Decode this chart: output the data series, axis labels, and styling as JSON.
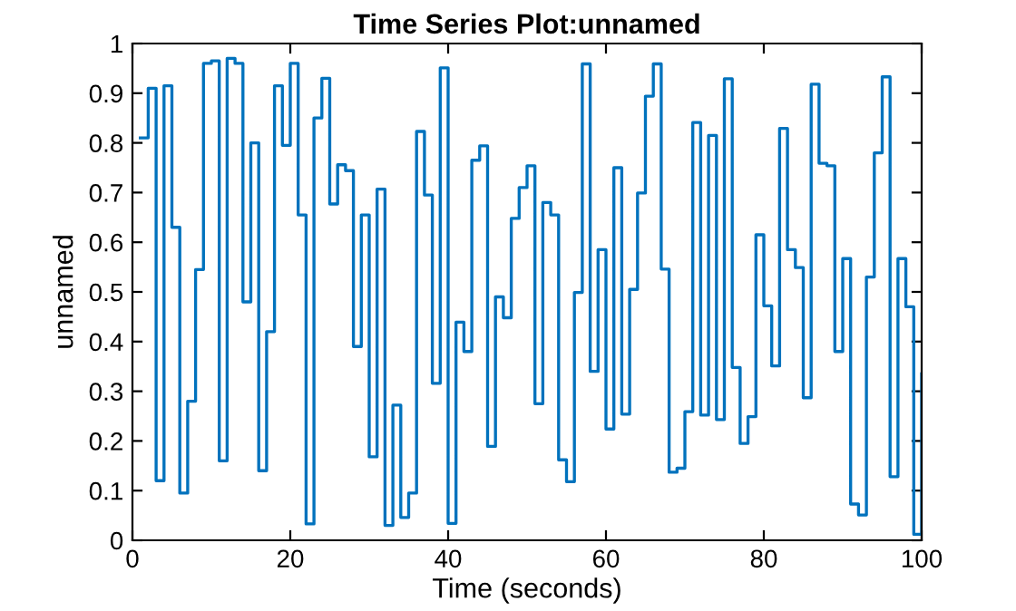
{
  "chart_data": {
    "type": "step",
    "title": "Time Series Plot:unnamed",
    "xlabel": "Time (seconds)",
    "ylabel": "unnamed",
    "x": [
      1,
      2,
      3,
      4,
      5,
      6,
      7,
      8,
      9,
      10,
      11,
      12,
      13,
      14,
      15,
      16,
      17,
      18,
      19,
      20,
      21,
      22,
      23,
      24,
      25,
      26,
      27,
      28,
      29,
      30,
      31,
      32,
      33,
      34,
      35,
      36,
      37,
      38,
      39,
      40,
      41,
      42,
      43,
      44,
      45,
      46,
      47,
      48,
      49,
      50,
      51,
      52,
      53,
      54,
      55,
      56,
      57,
      58,
      59,
      60,
      61,
      62,
      63,
      64,
      65,
      66,
      67,
      68,
      69,
      70,
      71,
      72,
      73,
      74,
      75,
      76,
      77,
      78,
      79,
      80,
      81,
      82,
      83,
      84,
      85,
      86,
      87,
      88,
      89,
      90,
      91,
      92,
      93,
      94,
      95,
      96,
      97,
      98,
      99,
      100
    ],
    "series": [
      {
        "color": "#0072bd",
        "values": [
          0.81,
          0.91,
          0.12,
          0.915,
          0.63,
          0.095,
          0.28,
          0.545,
          0.96,
          0.965,
          0.16,
          0.97,
          0.96,
          0.48,
          0.8,
          0.14,
          0.42,
          0.915,
          0.795,
          0.96,
          0.655,
          0.033,
          0.85,
          0.93,
          0.677,
          0.756,
          0.744,
          0.39,
          0.655,
          0.168,
          0.707,
          0.03,
          0.272,
          0.046,
          0.095,
          0.823,
          0.695,
          0.316,
          0.951,
          0.034,
          0.439,
          0.38,
          0.765,
          0.794,
          0.189,
          0.49,
          0.448,
          0.648,
          0.71,
          0.754,
          0.275,
          0.68,
          0.655,
          0.162,
          0.118,
          0.499,
          0.959,
          0.34,
          0.585,
          0.224,
          0.75,
          0.254,
          0.505,
          0.699,
          0.894,
          0.959,
          0.546,
          0.137,
          0.145,
          0.259,
          0.841,
          0.252,
          0.815,
          0.243,
          0.929,
          0.348,
          0.195,
          0.249,
          0.615,
          0.472,
          0.351,
          0.829,
          0.585,
          0.549,
          0.287,
          0.918,
          0.759,
          0.754,
          0.38,
          0.567,
          0.073,
          0.051,
          0.53,
          0.78,
          0.933,
          0.128,
          0.567,
          0.47,
          0.012,
          0.335
        ]
      }
    ],
    "xlim": [
      0,
      100
    ],
    "xticks": [
      0,
      20,
      40,
      60,
      80,
      100
    ],
    "ylim": [
      0,
      1
    ],
    "yticks": [
      0,
      0.1,
      0.2,
      0.3,
      0.4,
      0.5,
      0.6,
      0.7,
      0.8,
      0.9,
      1
    ],
    "grid": false,
    "legend": false
  }
}
